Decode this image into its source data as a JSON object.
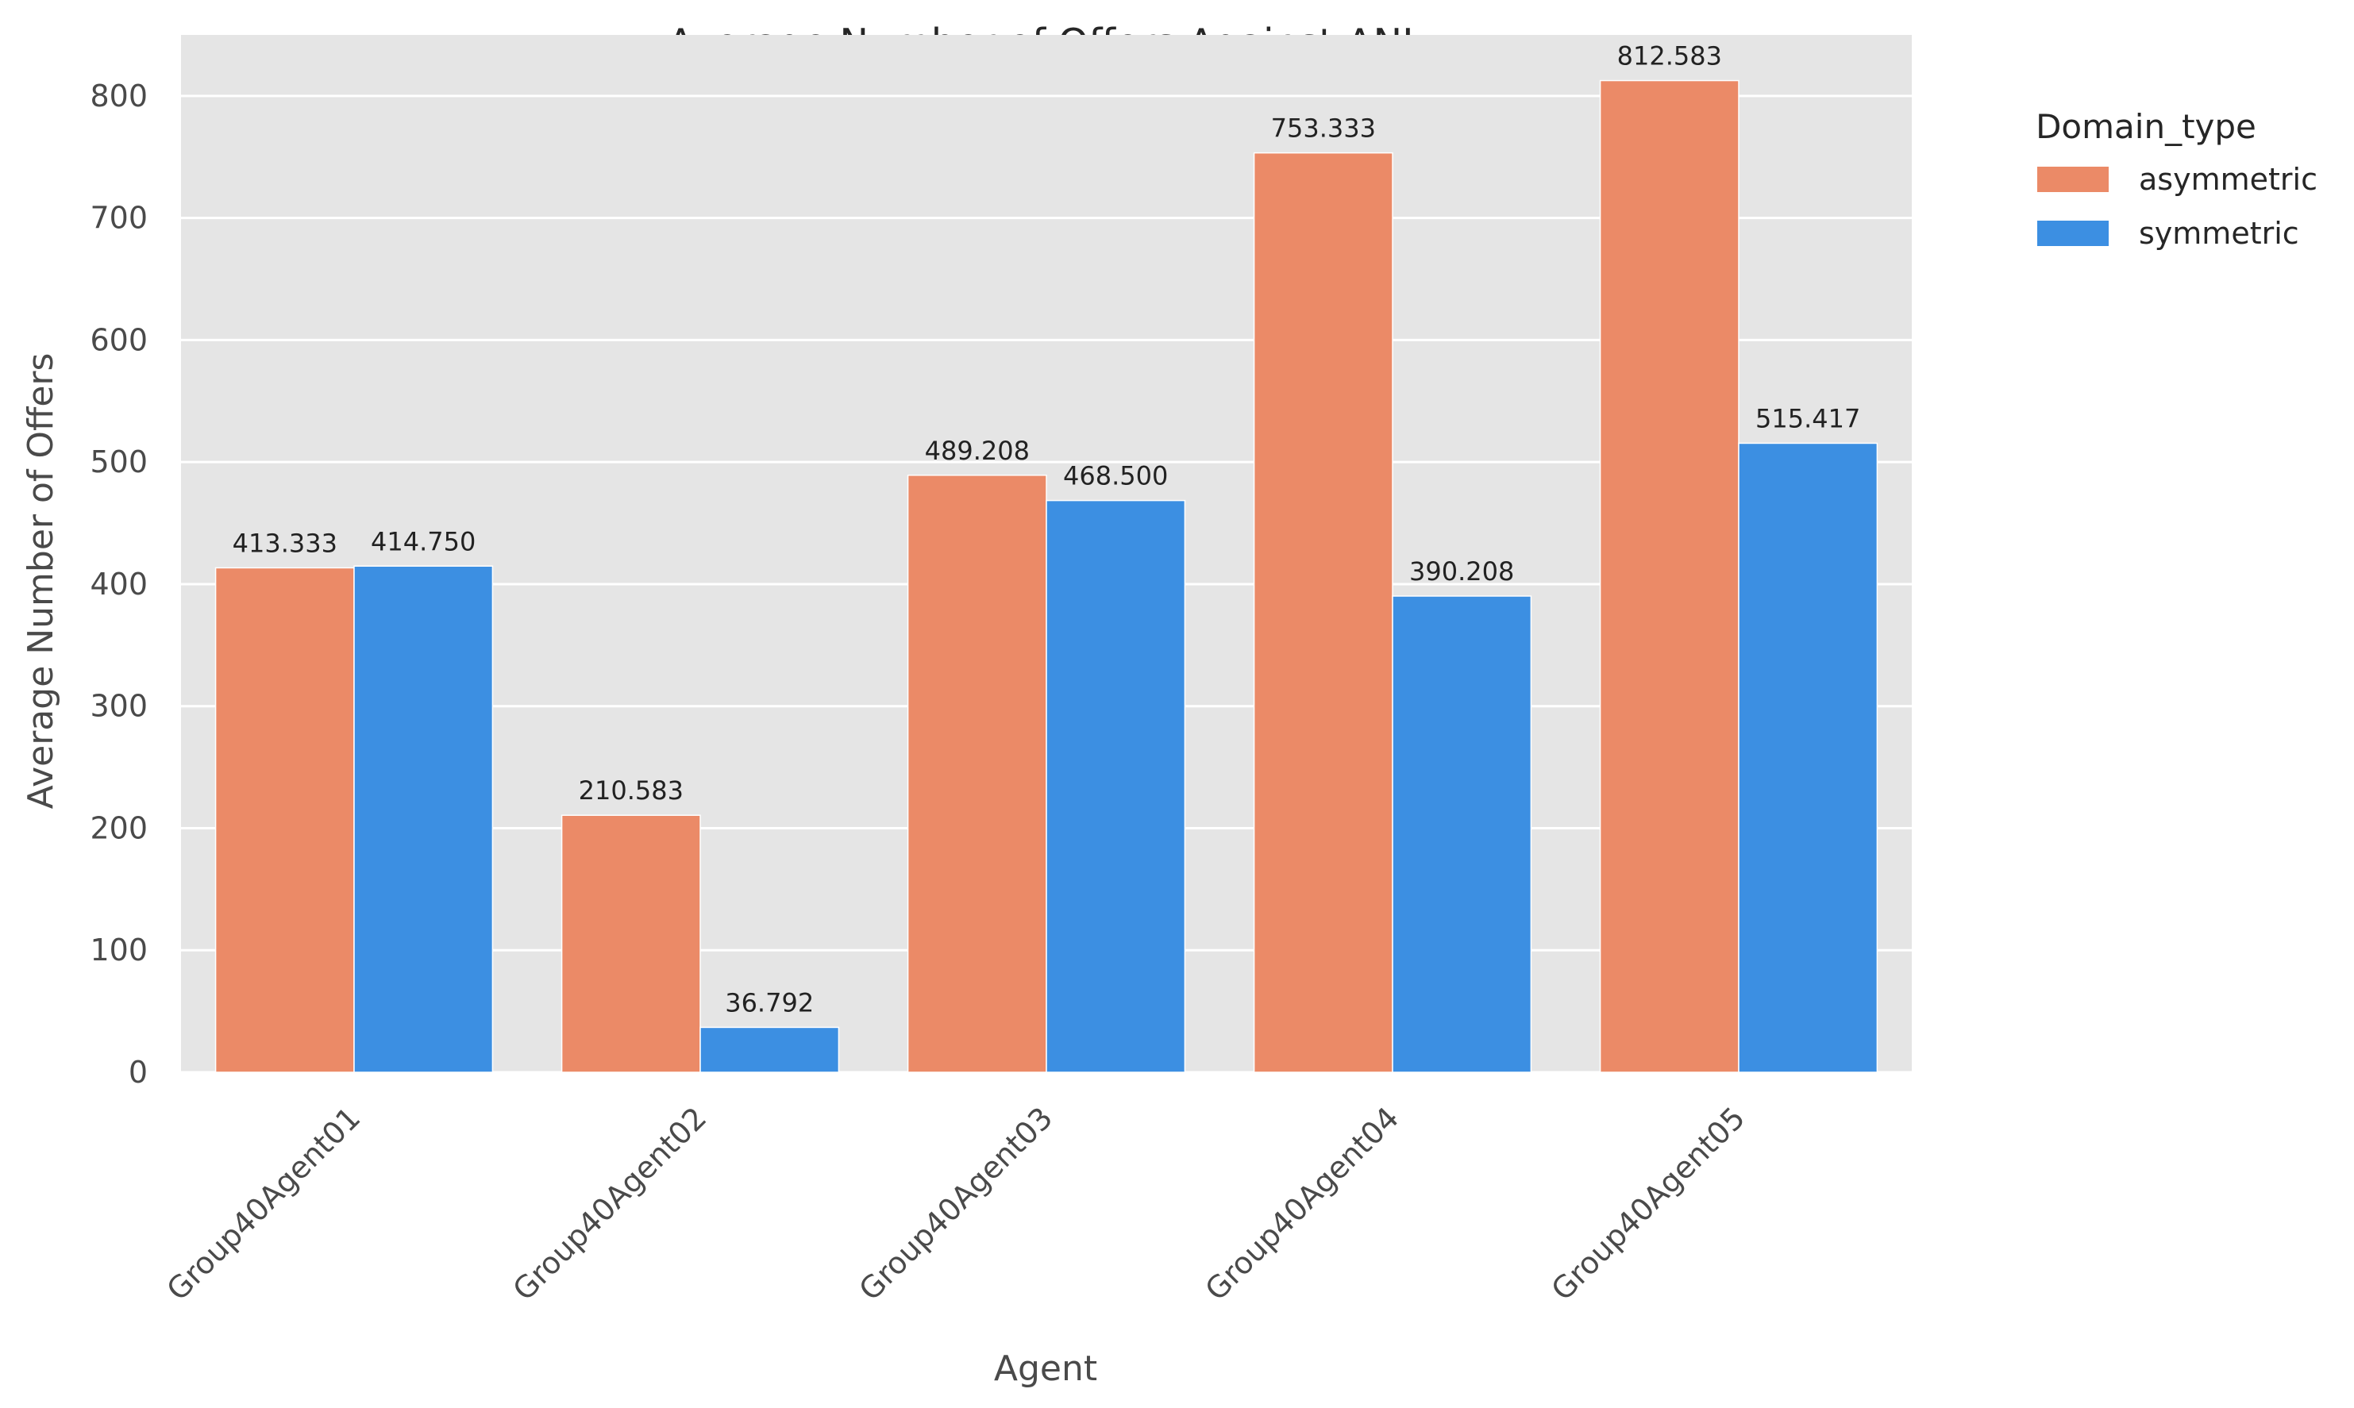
{
  "chart_data": {
    "type": "bar",
    "title": "Average Number of Offers Against ANL",
    "xlabel": "Agent",
    "ylabel": "Average Number of Offers",
    "categories": [
      "Group40Agent01",
      "Group40Agent02",
      "Group40Agent03",
      "Group40Agent04",
      "Group40Agent05"
    ],
    "series": [
      {
        "name": "asymmetric",
        "color": "#EB8A67",
        "values": [
          413.333,
          210.583,
          489.208,
          753.333,
          812.583
        ],
        "labels": [
          "413.333",
          "210.583",
          "489.208",
          "753.333",
          "812.583"
        ]
      },
      {
        "name": "symmetric",
        "color": "#3C8FE2",
        "values": [
          414.75,
          36.792,
          468.5,
          390.208,
          515.417
        ],
        "labels": [
          "414.750",
          "36.792",
          "468.500",
          "390.208",
          "515.417"
        ]
      }
    ],
    "ylim": [
      0,
      850
    ],
    "yticks": [
      0,
      100,
      200,
      300,
      400,
      500,
      600,
      700,
      800
    ],
    "ytick_labels": [
      "0",
      "100",
      "200",
      "300",
      "400",
      "500",
      "600",
      "700",
      "800"
    ],
    "grid": true,
    "grid_axis": "y",
    "plot_background": "#E5E5E5",
    "x_tick_rotation_deg": -45,
    "legend": {
      "title": "Domain_type",
      "placement": "outside-top-right"
    }
  }
}
